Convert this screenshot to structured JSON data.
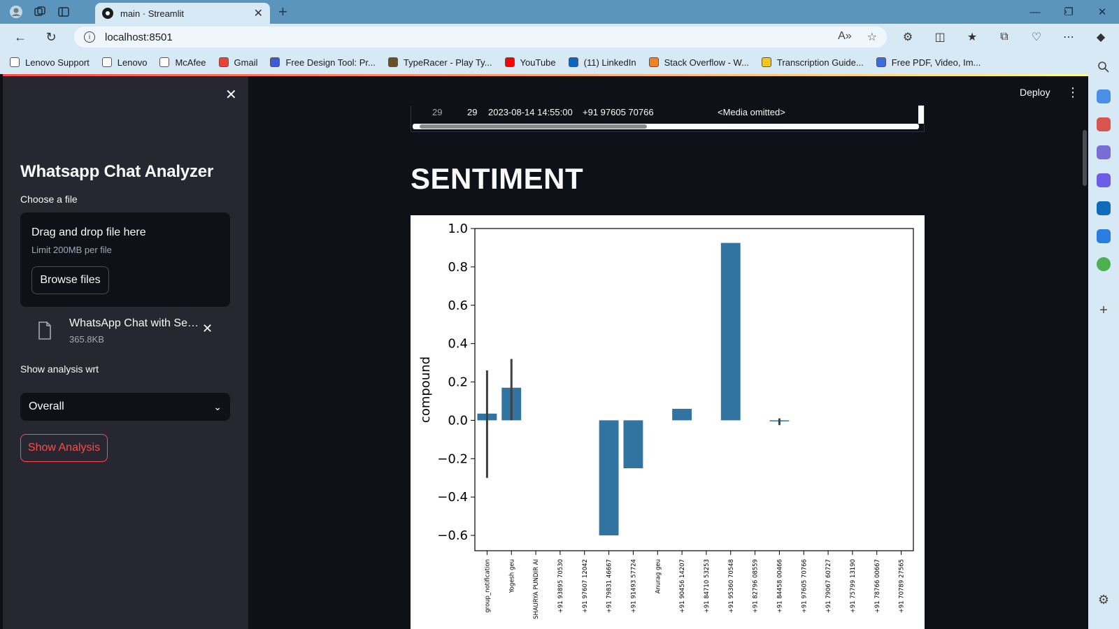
{
  "browser": {
    "tab_title": "main · Streamlit",
    "url": "localhost:8501",
    "bookmarks": [
      {
        "label": "Lenovo Support",
        "color": "#ffffff"
      },
      {
        "label": "Lenovo",
        "color": "#ffffff"
      },
      {
        "label": "McAfee",
        "color": "#ffffff"
      },
      {
        "label": "Gmail",
        "color": "#ea4335"
      },
      {
        "label": "Free Design Tool: Pr...",
        "color": "#3b5bdb"
      },
      {
        "label": "TypeRacer - Play Ty...",
        "color": "#6b4f2a"
      },
      {
        "label": "YouTube",
        "color": "#ff0000"
      },
      {
        "label": "(11) LinkedIn",
        "color": "#0a66c2"
      },
      {
        "label": "Stack Overflow - W...",
        "color": "#f48024"
      },
      {
        "label": "Transcription Guide...",
        "color": "#f5c518"
      },
      {
        "label": "Free PDF, Video, Im...",
        "color": "#3d6be0"
      }
    ]
  },
  "header": {
    "deploy_label": "Deploy"
  },
  "sidebar": {
    "title": "Whatsapp Chat Analyzer",
    "file_label": "Choose a file",
    "dropzone_title": "Drag and drop file here",
    "dropzone_limit": "Limit 200MB per file",
    "browse_label": "Browse files",
    "file_name": "WhatsApp Chat with Sect...",
    "file_size": "365.8KB",
    "analysis_label": "Show analysis wrt",
    "analysis_value": "Overall",
    "show_button": "Show Analysis"
  },
  "table": {
    "row": {
      "index": "29",
      "id": "29",
      "date": "2023-08-14 14:55:00",
      "user": "+91 97605 70766",
      "message": "<Media omitted>"
    }
  },
  "main": {
    "heading": "SENTIMENT"
  },
  "chart_data": {
    "type": "bar",
    "ylabel": "compound",
    "xlabel": "",
    "ylim": [
      -0.68,
      1.0
    ],
    "yticks": [
      "1.0",
      "0.8",
      "0.6",
      "0.4",
      "0.2",
      "0.0",
      "−0.2",
      "−0.4",
      "−0.6"
    ],
    "ytick_values": [
      1.0,
      0.8,
      0.6,
      0.4,
      0.2,
      0.0,
      -0.2,
      -0.4,
      -0.6
    ],
    "bar_color": "#3274a1",
    "errorbar_color": "#3f3f3f",
    "categories": [
      "group_notification",
      "Yogesh geu",
      "SHAURYA PUNDIR AI",
      "+91 93895 70530",
      "+91 97607 12042",
      "+91 79831 46667",
      "+91 91493 57724",
      "Anurag geu",
      "+91 90456 14207",
      "+91 84710 53253",
      "+91 95360 70548",
      "+91 82796 08559",
      "+91 84458 00466",
      "+91 97605 70766",
      "+91 79067 60727",
      "+91 75799 13190",
      "+91 78766 00667",
      "+91 70789 27565"
    ],
    "values": [
      0.035,
      0.17,
      0,
      0,
      0,
      -0.6,
      -0.25,
      0,
      0.06,
      0,
      0.925,
      0,
      -0.005,
      0,
      0,
      0,
      0,
      0
    ],
    "error_low": [
      -0.3,
      0.0,
      null,
      null,
      null,
      null,
      null,
      null,
      null,
      null,
      null,
      null,
      -0.025,
      null,
      null,
      null,
      null,
      null
    ],
    "error_high": [
      0.26,
      0.32,
      null,
      null,
      null,
      null,
      null,
      null,
      null,
      null,
      null,
      null,
      0.01,
      null,
      null,
      null,
      null,
      null
    ]
  }
}
